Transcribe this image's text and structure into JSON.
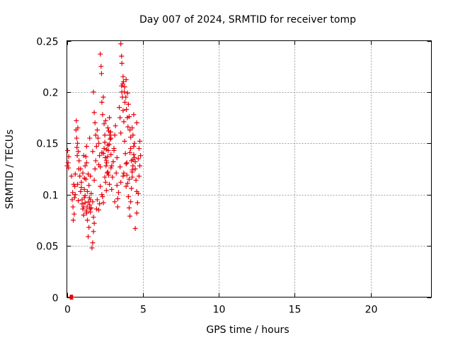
{
  "chart_data": {
    "type": "scatter",
    "title": "Day 007 of 2024, SRMTID for receiver tomp",
    "xlabel": "GPS time / hours",
    "ylabel": "SRMTID / TECUs",
    "xlim": [
      0,
      24
    ],
    "ylim": [
      0,
      0.25
    ],
    "xticks": [
      0,
      5,
      10,
      15,
      20
    ],
    "xtick_labels": [
      "0",
      "5",
      "10",
      "15",
      "20"
    ],
    "yticks": [
      0,
      0.05,
      0.1,
      0.15,
      0.2,
      0.25
    ],
    "ytick_labels": [
      "0",
      "0.05",
      "0.1",
      "0.15",
      "0.2",
      "0.25"
    ],
    "grid": true,
    "marker": "+",
    "color": "#e8000b",
    "series": [
      {
        "name": "SRMTID",
        "points": [
          [
            0.02,
            0.128
          ],
          [
            0.05,
            0.143
          ],
          [
            0.08,
            0.131
          ],
          [
            0.1,
            0.126
          ],
          [
            0.12,
            0.137
          ],
          [
            0.3,
            0.118
          ],
          [
            0.35,
            0.095
          ],
          [
            0.38,
            0.102
          ],
          [
            0.4,
            0.088
          ],
          [
            0.42,
            0.075
          ],
          [
            0.45,
            0.11
          ],
          [
            0.48,
            0.081
          ],
          [
            0.5,
            0.097
          ],
          [
            0.52,
            0.108
          ],
          [
            0.55,
            0.12
          ],
          [
            0.6,
            0.163
          ],
          [
            0.62,
            0.172
          ],
          [
            0.64,
            0.155
          ],
          [
            0.66,
            0.146
          ],
          [
            0.68,
            0.138
          ],
          [
            0.7,
            0.15
          ],
          [
            0.72,
            0.165
          ],
          [
            0.75,
            0.142
          ],
          [
            0.78,
            0.125
          ],
          [
            0.8,
            0.133
          ],
          [
            0.85,
            0.118
          ],
          [
            0.9,
            0.103
          ],
          [
            0.95,
            0.112
          ],
          [
            1.0,
            0.095
          ],
          [
            1.05,
            0.121
          ],
          [
            1.1,
            0.088
          ],
          [
            1.15,
            0.105
          ],
          [
            1.2,
            0.099
          ],
          [
            1.25,
            0.115
          ],
          [
            1.3,
            0.082
          ],
          [
            1.35,
            0.075
          ],
          [
            1.4,
            0.059
          ],
          [
            1.45,
            0.068
          ],
          [
            1.5,
            0.09
          ],
          [
            1.55,
            0.095
          ],
          [
            1.6,
            0.087
          ],
          [
            1.65,
            0.048
          ],
          [
            1.7,
            0.053
          ],
          [
            1.75,
            0.064
          ],
          [
            1.8,
            0.072
          ],
          [
            1.2,
            0.128
          ],
          [
            1.25,
            0.137
          ],
          [
            1.3,
            0.131
          ],
          [
            1.4,
            0.12
          ],
          [
            1.45,
            0.109
          ],
          [
            1.55,
            0.118
          ],
          [
            1.6,
            0.101
          ],
          [
            1.7,
            0.093
          ],
          [
            1.8,
            0.114
          ],
          [
            1.85,
            0.125
          ],
          [
            1.75,
            0.2
          ],
          [
            1.8,
            0.18
          ],
          [
            1.85,
            0.17
          ],
          [
            1.9,
            0.158
          ],
          [
            1.95,
            0.147
          ],
          [
            2.0,
            0.163
          ],
          [
            2.05,
            0.155
          ],
          [
            2.1,
            0.15
          ],
          [
            2.15,
            0.138
          ],
          [
            2.2,
            0.127
          ],
          [
            2.2,
            0.237
          ],
          [
            2.25,
            0.225
          ],
          [
            2.28,
            0.218
          ],
          [
            2.3,
            0.19
          ],
          [
            2.35,
            0.178
          ],
          [
            2.4,
            0.195
          ],
          [
            2.45,
            0.169
          ],
          [
            2.5,
            0.158
          ],
          [
            2.55,
            0.172
          ],
          [
            2.6,
            0.144
          ],
          [
            2.6,
            0.133
          ],
          [
            2.65,
            0.121
          ],
          [
            2.7,
            0.148
          ],
          [
            2.75,
            0.162
          ],
          [
            2.8,
            0.175
          ],
          [
            2.85,
            0.154
          ],
          [
            2.9,
            0.139
          ],
          [
            2.95,
            0.128
          ],
          [
            3.0,
            0.117
          ],
          [
            3.05,
            0.132
          ],
          [
            2.0,
            0.095
          ],
          [
            2.1,
            0.085
          ],
          [
            2.2,
            0.108
          ],
          [
            2.3,
            0.1
          ],
          [
            2.4,
            0.092
          ],
          [
            2.5,
            0.117
          ],
          [
            2.6,
            0.104
          ],
          [
            2.7,
            0.122
          ],
          [
            2.8,
            0.11
          ],
          [
            2.9,
            0.126
          ],
          [
            3.1,
            0.145
          ],
          [
            3.15,
            0.158
          ],
          [
            3.2,
            0.167
          ],
          [
            3.25,
            0.121
          ],
          [
            3.3,
            0.109
          ],
          [
            3.35,
            0.096
          ],
          [
            3.4,
            0.102
          ],
          [
            3.45,
            0.185
          ],
          [
            3.5,
            0.175
          ],
          [
            3.55,
            0.16
          ],
          [
            3.55,
            0.247
          ],
          [
            3.6,
            0.235
          ],
          [
            3.62,
            0.228
          ],
          [
            3.65,
            0.195
          ],
          [
            3.7,
            0.182
          ],
          [
            3.75,
            0.171
          ],
          [
            3.8,
            0.152
          ],
          [
            3.85,
            0.14
          ],
          [
            3.9,
            0.13
          ],
          [
            3.95,
            0.119
          ],
          [
            3.7,
            0.215
          ],
          [
            3.8,
            0.205
          ],
          [
            3.9,
            0.212
          ],
          [
            4.0,
            0.199
          ],
          [
            4.05,
            0.188
          ],
          [
            4.1,
            0.176
          ],
          [
            4.15,
            0.163
          ],
          [
            4.2,
            0.145
          ],
          [
            4.25,
            0.133
          ],
          [
            4.3,
            0.122
          ],
          [
            4.0,
            0.111
          ],
          [
            4.05,
            0.098
          ],
          [
            4.1,
            0.087
          ],
          [
            4.15,
            0.079
          ],
          [
            4.2,
            0.093
          ],
          [
            4.25,
            0.106
          ],
          [
            4.3,
            0.117
          ],
          [
            4.35,
            0.128
          ],
          [
            4.4,
            0.139
          ],
          [
            4.45,
            0.15
          ],
          [
            4.3,
            0.165
          ],
          [
            4.35,
            0.158
          ],
          [
            4.4,
            0.147
          ],
          [
            4.45,
            0.136
          ],
          [
            4.5,
            0.125
          ],
          [
            4.55,
            0.114
          ],
          [
            4.6,
            0.103
          ],
          [
            4.65,
            0.092
          ],
          [
            4.7,
            0.135
          ],
          [
            4.75,
            0.145
          ],
          [
            4.5,
            0.067
          ],
          [
            4.6,
            0.082
          ],
          [
            4.7,
            0.101
          ],
          [
            4.75,
            0.118
          ],
          [
            4.8,
            0.128
          ],
          [
            4.85,
            0.138
          ],
          [
            4.8,
            0.152
          ],
          [
            4.6,
            0.17
          ],
          [
            4.4,
            0.178
          ],
          [
            4.2,
            0.156
          ],
          [
            0.7,
            0.11
          ],
          [
            0.9,
            0.125
          ],
          [
            1.1,
            0.138
          ],
          [
            1.3,
            0.147
          ],
          [
            1.5,
            0.155
          ],
          [
            1.7,
            0.142
          ],
          [
            1.9,
            0.133
          ],
          [
            2.1,
            0.129
          ],
          [
            2.3,
            0.141
          ],
          [
            2.5,
            0.151
          ],
          [
            2.7,
            0.165
          ],
          [
            2.9,
            0.155
          ],
          [
            3.1,
            0.143
          ],
          [
            3.3,
            0.136
          ],
          [
            3.5,
            0.127
          ],
          [
            3.7,
            0.118
          ],
          [
            3.9,
            0.108
          ],
          [
            4.1,
            0.115
          ],
          [
            4.3,
            0.124
          ],
          [
            4.5,
            0.132
          ],
          [
            0.55,
            0.1
          ],
          [
            0.75,
            0.094
          ],
          [
            0.95,
            0.107
          ],
          [
            1.15,
            0.116
          ],
          [
            1.35,
            0.103
          ],
          [
            1.55,
            0.083
          ],
          [
            1.75,
            0.078
          ],
          [
            1.95,
            0.086
          ],
          [
            2.15,
            0.091
          ],
          [
            2.35,
            0.098
          ],
          [
            2.55,
            0.112
          ],
          [
            2.75,
            0.119
          ],
          [
            2.95,
            0.105
          ],
          [
            3.15,
            0.093
          ],
          [
            3.35,
            0.088
          ],
          [
            3.55,
            0.112
          ],
          [
            3.75,
            0.121
          ],
          [
            3.95,
            0.131
          ],
          [
            4.15,
            0.141
          ],
          [
            4.35,
            0.134
          ],
          [
            1.0,
            0.091
          ],
          [
            1.05,
            0.086
          ],
          [
            1.1,
            0.08
          ],
          [
            1.15,
            0.097
          ],
          [
            1.2,
            0.092
          ],
          [
            1.28,
            0.084
          ],
          [
            1.33,
            0.088
          ],
          [
            1.42,
            0.093
          ],
          [
            1.48,
            0.097
          ],
          [
            1.52,
            0.086
          ],
          [
            2.4,
            0.14
          ],
          [
            2.45,
            0.145
          ],
          [
            2.52,
            0.136
          ],
          [
            2.58,
            0.128
          ],
          [
            2.62,
            0.131
          ],
          [
            2.68,
            0.137
          ],
          [
            2.72,
            0.143
          ],
          [
            2.78,
            0.149
          ],
          [
            2.82,
            0.158
          ],
          [
            2.88,
            0.161
          ],
          [
            3.6,
            0.206
          ],
          [
            3.62,
            0.2
          ],
          [
            3.68,
            0.208
          ],
          [
            3.72,
            0.21
          ],
          [
            3.78,
            0.2
          ],
          [
            3.82,
            0.19
          ],
          [
            3.88,
            0.195
          ],
          [
            3.92,
            0.183
          ],
          [
            3.98,
            0.175
          ],
          [
            4.02,
            0.166
          ],
          [
            0.22,
            0.0
          ],
          [
            0.26,
            0.0
          ],
          [
            0.3,
            0.0
          ],
          [
            0.34,
            0.0
          ],
          [
            0.38,
            0.0
          ]
        ]
      }
    ]
  }
}
